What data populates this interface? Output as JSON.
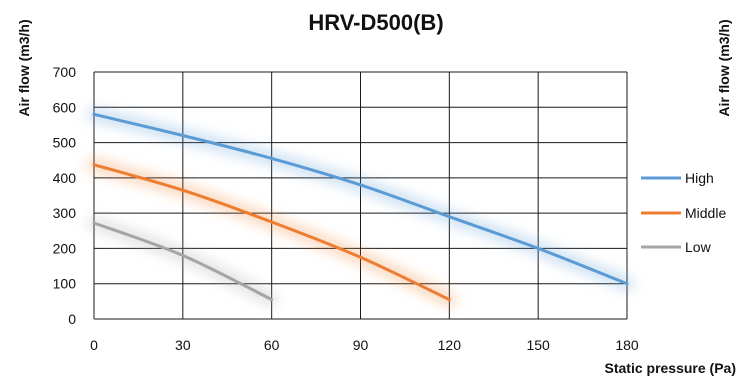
{
  "chart_data": {
    "type": "line",
    "title": "HRV-D500(B)",
    "xlabel": "Static pressure  (Pa)",
    "ylabel": "Air flow (m3/h)",
    "ylabel_right": "Air flow (m3/h)",
    "xlim": [
      0,
      180
    ],
    "ylim": [
      0,
      700
    ],
    "xticks": [
      0,
      30,
      60,
      90,
      120,
      150,
      180
    ],
    "yticks": [
      0,
      100,
      200,
      300,
      400,
      500,
      600,
      700
    ],
    "grid": true,
    "legend_position": "right",
    "series": [
      {
        "name": "High",
        "color": "#5b9bd5",
        "x": [
          0,
          30,
          60,
          90,
          120,
          150,
          180
        ],
        "y": [
          580,
          520,
          455,
          380,
          290,
          200,
          100
        ]
      },
      {
        "name": "Middle",
        "color": "#ed7d31",
        "x": [
          0,
          30,
          60,
          90,
          120
        ],
        "y": [
          437,
          365,
          275,
          175,
          55
        ]
      },
      {
        "name": "Low",
        "color": "#a5a5a5",
        "x": [
          0,
          30,
          60
        ],
        "y": [
          272,
          180,
          55
        ]
      }
    ]
  }
}
